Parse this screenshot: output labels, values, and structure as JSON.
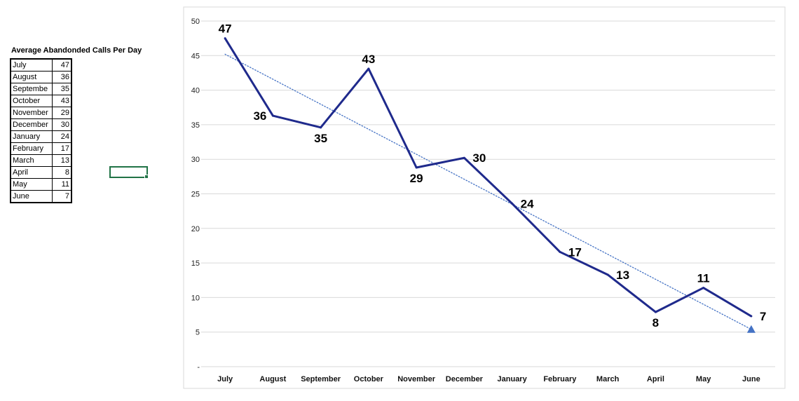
{
  "sheet": {
    "table_title": "Average Abandonded Calls Per Day",
    "rows": [
      {
        "month": "July",
        "value": "47"
      },
      {
        "month": "August",
        "value": "36"
      },
      {
        "month": "Septembe",
        "value": "35"
      },
      {
        "month": "October",
        "value": "43"
      },
      {
        "month": "November",
        "value": "29"
      },
      {
        "month": "December",
        "value": "30"
      },
      {
        "month": "January",
        "value": "24"
      },
      {
        "month": "February",
        "value": "17"
      },
      {
        "month": "March",
        "value": "13"
      },
      {
        "month": "April",
        "value": "8"
      },
      {
        "month": "May",
        "value": "11"
      },
      {
        "month": "June",
        "value": "7"
      }
    ]
  },
  "chart_data": {
    "type": "line",
    "categories": [
      "July",
      "August",
      "September",
      "October",
      "November",
      "December",
      "January",
      "February",
      "March",
      "April",
      "May",
      "June"
    ],
    "series": [
      {
        "values": [
          47.5,
          36.3,
          34.6,
          43.1,
          28.8,
          30.2,
          23.6,
          16.6,
          13.3,
          7.9,
          11.4,
          7.3
        ],
        "labels": [
          "47",
          "36",
          "35",
          "43",
          "29",
          "30",
          "24",
          "17",
          "13",
          "8",
          "11",
          "7"
        ],
        "color": "#1f2a8c"
      }
    ],
    "trendline": {
      "type": "linear",
      "style": "dotted",
      "color": "#4472c4",
      "start": 45.2,
      "end": 5.4,
      "end_marker": "triangle"
    },
    "y_ticks": [
      "-",
      "5",
      "10",
      "15",
      "20",
      "25",
      "30",
      "35",
      "40",
      "45",
      "50"
    ],
    "ylim": [
      0,
      50
    ],
    "grid": true,
    "gridline_color": "#d9d9d9"
  }
}
